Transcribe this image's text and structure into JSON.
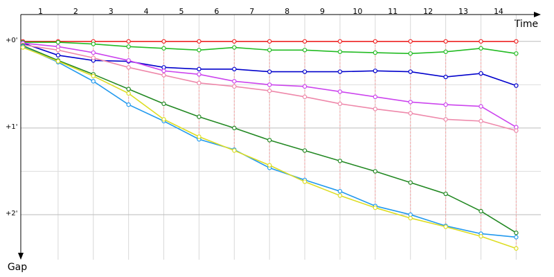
{
  "chart_data": {
    "type": "line",
    "x_label": "Time",
    "y_label": "Gap",
    "x": [
      0,
      1,
      2,
      3,
      4,
      5,
      6,
      7,
      8,
      9,
      10,
      11,
      12,
      13,
      14
    ],
    "xlim": [
      0,
      14.7
    ],
    "xticks": [
      {
        "value": 0.5,
        "label": "1"
      },
      {
        "value": 1.5,
        "label": "2"
      },
      {
        "value": 2.5,
        "label": "3"
      },
      {
        "value": 3.5,
        "label": "4"
      },
      {
        "value": 4.5,
        "label": "5"
      },
      {
        "value": 5.5,
        "label": "6"
      },
      {
        "value": 6.5,
        "label": "7"
      },
      {
        "value": 7.5,
        "label": "8"
      },
      {
        "value": 8.5,
        "label": "9"
      },
      {
        "value": 9.5,
        "label": "10"
      },
      {
        "value": 10.5,
        "label": "11"
      },
      {
        "value": 11.5,
        "label": "12"
      },
      {
        "value": 12.5,
        "label": "13"
      },
      {
        "value": 13.5,
        "label": "14"
      }
    ],
    "ylim": [
      -0.31,
      2.52
    ],
    "yticks": [
      {
        "value": 0,
        "label": "+0'"
      },
      {
        "value": 1,
        "label": "+1'"
      },
      {
        "value": 2,
        "label": "+2'"
      }
    ],
    "minor_yticks": [
      0.5,
      1.5
    ],
    "grid": true,
    "y_inverted": true,
    "series": [
      {
        "color": "#ee2222",
        "values": [
          0,
          0,
          0,
          0,
          0,
          0,
          0,
          0,
          0,
          0,
          0,
          0,
          0,
          0,
          0
        ]
      },
      {
        "color": "#22bb22",
        "values": [
          0.01,
          0.01,
          0.03,
          0.06,
          0.08,
          0.1,
          0.07,
          0.1,
          0.1,
          0.12,
          0.13,
          0.14,
          0.12,
          0.08,
          0.14
        ]
      },
      {
        "color": "#0000cc",
        "values": [
          0.02,
          0.16,
          0.22,
          0.23,
          0.3,
          0.32,
          0.32,
          0.35,
          0.35,
          0.35,
          0.34,
          0.35,
          0.41,
          0.37,
          0.51
        ]
      },
      {
        "color": "#cc44ee",
        "values": [
          0.02,
          0.06,
          0.13,
          0.22,
          0.34,
          0.38,
          0.46,
          0.5,
          0.52,
          0.58,
          0.64,
          0.7,
          0.73,
          0.75,
          0.99
        ]
      },
      {
        "color": "#ee88aa",
        "values": [
          0.04,
          0.1,
          0.19,
          0.3,
          0.39,
          0.48,
          0.52,
          0.57,
          0.64,
          0.72,
          0.78,
          0.83,
          0.9,
          0.92,
          1.03
        ]
      },
      {
        "color": "#228822",
        "values": [
          0.05,
          0.22,
          0.38,
          0.55,
          0.72,
          0.87,
          1.0,
          1.14,
          1.26,
          1.38,
          1.5,
          1.63,
          1.76,
          1.96,
          2.21
        ]
      },
      {
        "color": "#2299ee",
        "values": [
          0.06,
          0.24,
          0.46,
          0.73,
          0.92,
          1.13,
          1.25,
          1.46,
          1.6,
          1.73,
          1.9,
          2.0,
          2.13,
          2.22,
          2.26
        ]
      },
      {
        "color": "#dddd22",
        "values": [
          0.07,
          0.23,
          0.4,
          0.6,
          0.9,
          1.1,
          1.26,
          1.43,
          1.62,
          1.78,
          1.92,
          2.04,
          2.14,
          2.25,
          2.39
        ]
      }
    ]
  }
}
